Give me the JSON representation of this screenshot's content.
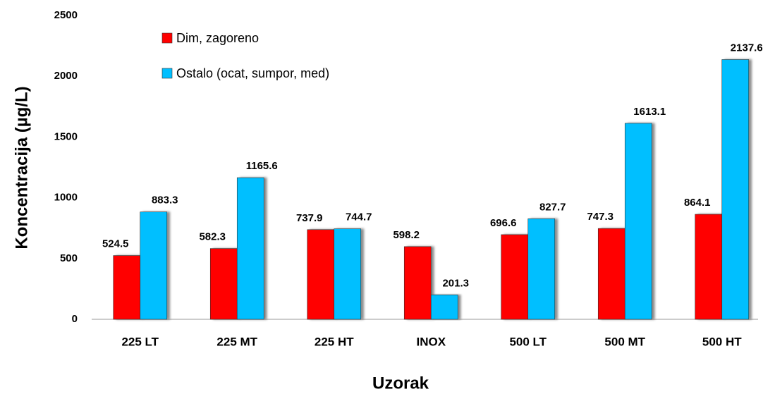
{
  "chart_data": {
    "type": "bar",
    "xlabel": "Uzorak",
    "ylabel": "Koncentracija (µg/L)",
    "categories": [
      "225 LT",
      "225 MT",
      "225 HT",
      "INOX",
      "500 LT",
      "500 MT",
      "500 HT"
    ],
    "series": [
      {
        "name": "Dim, zagoreno",
        "color": "#ff0000",
        "values": [
          524.5,
          582.3,
          737.9,
          598.2,
          696.6,
          747.3,
          864.1
        ]
      },
      {
        "name": "Ostalo (ocat, sumpor, med)",
        "color": "#00bfff",
        "values": [
          883.3,
          1165.6,
          744.7,
          201.3,
          827.7,
          1613.1,
          2137.6
        ]
      }
    ],
    "ylim": [
      0,
      2500
    ],
    "yticks": [
      0,
      500,
      1000,
      1500,
      2000,
      2500
    ],
    "grid": false,
    "legend": "upper left",
    "value_labels_shown": true
  }
}
